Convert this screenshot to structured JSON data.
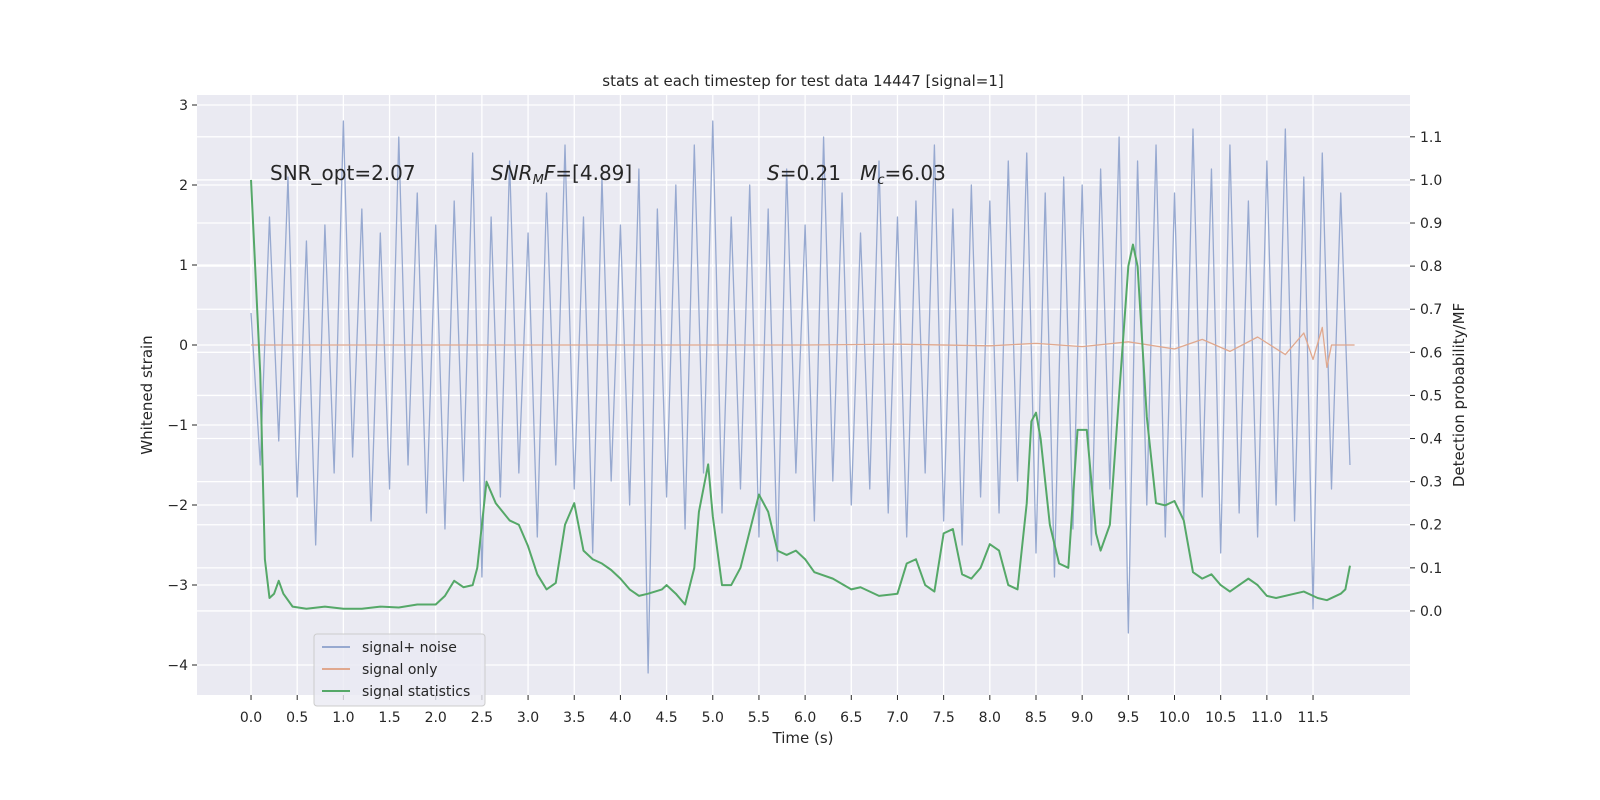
{
  "chart_data": {
    "type": "line",
    "title": "stats at each timestep for test data 14447 [signal=1]",
    "xlabel": "Time (s)",
    "ylabel": "Whitened strain",
    "y2label": "Detection probability/MF",
    "grid": true,
    "legend": "lower left",
    "xlim": [
      -0.585,
      12.55
    ],
    "ylim": [
      -4.375,
      3.125
    ],
    "y2lim": [
      -0.195,
      1.197
    ],
    "xticks": [
      {
        "value": 0,
        "label": "0.0"
      },
      0.5,
      {
        "value": 1,
        "label": "1.0"
      },
      1.5,
      {
        "value": 2,
        "label": "2.0"
      },
      2.5,
      {
        "value": 3,
        "label": "3.0"
      },
      3.5,
      {
        "value": 4,
        "label": "4.0"
      },
      4.5,
      {
        "value": 5,
        "label": "5.0"
      },
      5.5,
      {
        "value": 6,
        "label": "6.0"
      },
      6.5,
      {
        "value": 7,
        "label": "7.0"
      },
      7.5,
      {
        "value": 8,
        "label": "8.0"
      },
      8.5,
      {
        "value": 9,
        "label": "9.0"
      },
      9.5,
      {
        "value": 10,
        "label": "10.0"
      },
      10.5,
      {
        "value": 11,
        "label": "11.0"
      },
      11.5
    ],
    "yticks": [
      {
        "value": -4,
        "label": "−4"
      },
      {
        "value": -3,
        "label": "−3"
      },
      {
        "value": -2,
        "label": "−2"
      },
      {
        "value": -1,
        "label": "−1"
      },
      0,
      1,
      2,
      3
    ],
    "y2ticks": [
      {
        "value": 0,
        "label": "0.0"
      },
      0.1,
      0.2,
      0.3,
      0.4,
      0.5,
      0.6,
      0.7,
      0.8,
      0.9,
      {
        "value": 1,
        "label": "1.0"
      },
      1.1
    ],
    "annotations": [
      [
        {
          "text": "SNR_opt=2.07"
        }
      ],
      [
        {
          "text": "SNR",
          "italic": true
        },
        {
          "text": "M",
          "italic": true,
          "sub": true
        },
        {
          "text": "F",
          "italic": true
        },
        {
          "text": "=[4.89]"
        }
      ],
      [
        {
          "text": "S",
          "italic": true
        },
        {
          "text": "=0.21   "
        },
        {
          "text": "M",
          "italic": true
        },
        {
          "text": "c",
          "italic": true,
          "sub": true
        },
        {
          "text": "=6.03"
        }
      ]
    ],
    "series": [
      {
        "name": "signal+ noise",
        "color": "#97a9d0",
        "x": [
          0,
          0.1,
          0.2,
          0.3,
          0.4,
          0.5,
          0.6,
          0.7,
          0.8,
          0.9,
          1,
          1.1,
          1.2,
          1.3,
          1.4,
          1.5,
          1.6,
          1.7,
          1.8,
          1.9,
          2,
          2.1,
          2.2,
          2.3,
          2.4,
          2.5,
          2.6,
          2.7,
          2.8,
          2.9,
          3,
          3.1,
          3.2,
          3.3,
          3.4,
          3.5,
          3.6,
          3.7,
          3.8,
          3.9,
          4,
          4.1,
          4.2,
          4.3,
          4.4,
          4.5,
          4.6,
          4.7,
          4.8,
          4.9,
          5,
          5.1,
          5.2,
          5.3,
          5.4,
          5.5,
          5.6,
          5.7,
          5.8,
          5.9,
          6,
          6.1,
          6.2,
          6.3,
          6.4,
          6.5,
          6.6,
          6.7,
          6.8,
          6.9,
          7,
          7.1,
          7.2,
          7.3,
          7.4,
          7.5,
          7.6,
          7.7,
          7.8,
          7.9,
          8,
          8.1,
          8.2,
          8.3,
          8.4,
          8.5,
          8.6,
          8.7,
          8.8,
          8.9,
          9,
          9.1,
          9.2,
          9.3,
          9.4,
          9.5,
          9.6,
          9.7,
          9.8,
          9.9,
          10,
          10.1,
          10.2,
          10.3,
          10.4,
          10.5,
          10.6,
          10.7,
          10.8,
          10.9,
          11,
          11.1,
          11.2,
          11.3,
          11.4,
          11.5,
          11.6,
          11.7,
          11.8,
          11.9
        ],
        "values": [
          0.4,
          -1.5,
          1.6,
          -1.2,
          2.1,
          -1.9,
          1.3,
          -2.5,
          1.5,
          -1.6,
          2.8,
          -1.4,
          1.7,
          -2.2,
          1.4,
          -1.8,
          2.6,
          -1.5,
          1.9,
          -2.1,
          1.5,
          -2.3,
          1.8,
          -1.7,
          2.4,
          -2.9,
          1.6,
          -1.9,
          2.3,
          -1.6,
          1.4,
          -2.4,
          1.9,
          -1.5,
          2.5,
          -1.8,
          1.6,
          -2.6,
          2.1,
          -1.7,
          1.5,
          -2.0,
          2.2,
          -4.1,
          1.7,
          -1.9,
          2.0,
          -2.3,
          2.5,
          -1.6,
          2.8,
          -2.1,
          1.6,
          -1.8,
          2.0,
          -2.4,
          1.7,
          -2.7,
          2.2,
          -1.6,
          1.5,
          -2.2,
          2.6,
          -1.7,
          1.9,
          -2.0,
          1.4,
          -1.8,
          2.3,
          -2.1,
          1.6,
          -2.4,
          1.8,
          -1.6,
          2.5,
          -2.2,
          1.7,
          -2.5,
          2.0,
          -1.9,
          1.8,
          -2.1,
          2.3,
          -1.7,
          2.4,
          -2.6,
          1.9,
          -2.9,
          2.1,
          -2.3,
          2.0,
          -2.5,
          2.2,
          -1.8,
          2.6,
          -3.6,
          2.3,
          -2.0,
          2.5,
          -2.4,
          1.9,
          -2.2,
          2.7,
          -1.9,
          2.2,
          -2.6,
          2.5,
          -2.1,
          1.8,
          -2.4,
          2.3,
          -2.0,
          2.7,
          -2.2,
          2.1,
          -3.3,
          2.4,
          -1.8,
          1.9,
          -1.5
        ]
      },
      {
        "name": "signal only",
        "color": "#e0a88e",
        "x": [
          0,
          2,
          4,
          6,
          7,
          8,
          8.5,
          9,
          9.5,
          10,
          10.3,
          10.6,
          10.9,
          11.2,
          11.4,
          11.5,
          11.6,
          11.65,
          11.7,
          11.95
        ],
        "values": [
          0,
          0,
          0,
          0,
          0.01,
          -0.01,
          0.02,
          -0.02,
          0.04,
          -0.05,
          0.07,
          -0.08,
          0.1,
          -0.12,
          0.15,
          -0.18,
          0.22,
          -0.28,
          0,
          0
        ]
      },
      {
        "name": "signal statistics",
        "color": "#55a868",
        "axis": "y2",
        "x": [
          0,
          0.1,
          0.15,
          0.2,
          0.25,
          0.3,
          0.35,
          0.45,
          0.6,
          0.8,
          1,
          1.2,
          1.4,
          1.6,
          1.8,
          2,
          2.1,
          2.2,
          2.3,
          2.4,
          2.45,
          2.55,
          2.65,
          2.8,
          2.9,
          3,
          3.1,
          3.2,
          3.3,
          3.4,
          3.5,
          3.6,
          3.7,
          3.8,
          3.9,
          4,
          4.1,
          4.2,
          4.3,
          4.45,
          4.5,
          4.6,
          4.7,
          4.8,
          4.85,
          4.95,
          5,
          5.1,
          5.2,
          5.3,
          5.5,
          5.6,
          5.7,
          5.8,
          5.9,
          6,
          6.1,
          6.3,
          6.5,
          6.6,
          6.8,
          7,
          7.1,
          7.2,
          7.3,
          7.4,
          7.5,
          7.6,
          7.7,
          7.8,
          7.9,
          8,
          8.1,
          8.2,
          8.3,
          8.4,
          8.45,
          8.5,
          8.55,
          8.65,
          8.75,
          8.85,
          8.95,
          9.05,
          9.15,
          9.2,
          9.3,
          9.4,
          9.5,
          9.55,
          9.6,
          9.7,
          9.8,
          9.9,
          10,
          10.1,
          10.2,
          10.3,
          10.4,
          10.5,
          10.6,
          10.7,
          10.8,
          10.9,
          11,
          11.1,
          11.3,
          11.4,
          11.55,
          11.65,
          11.8,
          11.85,
          11.9
        ],
        "values": [
          1,
          0.55,
          0.12,
          0.03,
          0.04,
          0.07,
          0.04,
          0.01,
          0.005,
          0.01,
          0.005,
          0.005,
          0.01,
          0.008,
          0.015,
          0.015,
          0.035,
          0.07,
          0.055,
          0.06,
          0.1,
          0.3,
          0.25,
          0.21,
          0.2,
          0.15,
          0.085,
          0.05,
          0.065,
          0.2,
          0.25,
          0.14,
          0.12,
          0.11,
          0.095,
          0.075,
          0.05,
          0.035,
          0.04,
          0.05,
          0.06,
          0.04,
          0.015,
          0.1,
          0.23,
          0.34,
          0.22,
          0.06,
          0.06,
          0.1,
          0.27,
          0.23,
          0.14,
          0.13,
          0.14,
          0.12,
          0.09,
          0.075,
          0.05,
          0.055,
          0.035,
          0.04,
          0.11,
          0.12,
          0.06,
          0.045,
          0.18,
          0.19,
          0.085,
          0.075,
          0.1,
          0.155,
          0.14,
          0.06,
          0.05,
          0.25,
          0.44,
          0.46,
          0.4,
          0.2,
          0.11,
          0.1,
          0.42,
          0.42,
          0.18,
          0.14,
          0.2,
          0.5,
          0.8,
          0.85,
          0.8,
          0.45,
          0.25,
          0.245,
          0.255,
          0.21,
          0.09,
          0.075,
          0.085,
          0.06,
          0.045,
          0.06,
          0.075,
          0.06,
          0.035,
          0.03,
          0.04,
          0.045,
          0.03,
          0.025,
          0.04,
          0.05,
          0.105
        ]
      }
    ]
  }
}
